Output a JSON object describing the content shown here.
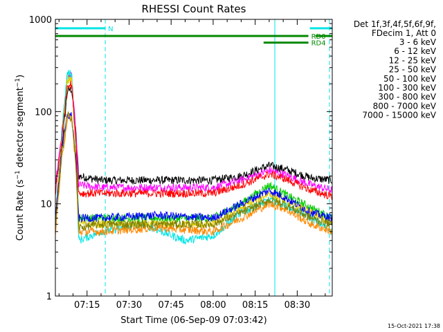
{
  "chart_data": {
    "type": "line",
    "title": "RHESSI Count Rates",
    "xlabel": "Start Time (06-Sep-09 07:03:42)",
    "ylabel": "Count Rate (s⁻¹ detector segment⁻¹)",
    "ylabel_main": "Count Rate (s",
    "ylabel_sup1": "−1",
    "ylabel_mid": " detector segment",
    "ylabel_sup2": "−1",
    "ylabel_end": ")",
    "yscale": "log",
    "ylim": [
      1,
      1000
    ],
    "xlim": [
      "07:03:42",
      "08:42:30"
    ],
    "x_ticks": [
      "07:15",
      "07:30",
      "07:45",
      "08:00",
      "08:15",
      "08:30"
    ],
    "y_ticks": [
      "1",
      "10",
      "100",
      "1000"
    ],
    "legend_header": [
      "Det 1f,3f,4f,5f,6f,9f,",
      "FDecim 1, Att 0"
    ],
    "legend": [
      {
        "label": "3 - 6 keV",
        "color": "#000000"
      },
      {
        "label": "6 - 12 keV",
        "color": "#ff00ff"
      },
      {
        "label": "12 - 25 keV",
        "color": "#00cc00"
      },
      {
        "label": "25 - 50 keV",
        "color": "#00e5e5"
      },
      {
        "label": "50 - 100 keV",
        "color": "#e5cc00"
      },
      {
        "label": "100 - 300 keV",
        "color": "#ff0000"
      },
      {
        "label": "300 - 800 keV",
        "color": "#0000ff"
      },
      {
        "label": "800 - 7000 keV",
        "color": "#ff8800"
      },
      {
        "label": "7000 - 15000 keV",
        "color": "#808000"
      }
    ],
    "series": [
      {
        "name": "3 - 6 keV",
        "color": "#000000",
        "points": [
          [
            "07:03:42",
            16
          ],
          [
            "07:06:00",
            40
          ],
          [
            "07:08:00",
            170
          ],
          [
            "07:09:30",
            175
          ],
          [
            "07:11:00",
            60
          ],
          [
            "07:12:00",
            20
          ],
          [
            "07:20:00",
            18
          ],
          [
            "07:40:00",
            18
          ],
          [
            "08:00:00",
            18
          ],
          [
            "08:10:00",
            20
          ],
          [
            "08:20:00",
            26
          ],
          [
            "08:25:00",
            24
          ],
          [
            "08:35:00",
            19
          ],
          [
            "08:42:30",
            18
          ]
        ]
      },
      {
        "name": "6 - 12 keV",
        "color": "#ff00ff",
        "points": [
          [
            "07:03:42",
            16
          ],
          [
            "07:06:00",
            60
          ],
          [
            "07:08:00",
            240
          ],
          [
            "07:09:30",
            240
          ],
          [
            "07:11:00",
            60
          ],
          [
            "07:12:00",
            16
          ],
          [
            "07:20:00",
            15
          ],
          [
            "07:40:00",
            15
          ],
          [
            "08:00:00",
            15
          ],
          [
            "08:10:00",
            18
          ],
          [
            "08:20:00",
            23
          ],
          [
            "08:25:00",
            21
          ],
          [
            "08:35:00",
            16
          ],
          [
            "08:42:30",
            14
          ]
        ]
      },
      {
        "name": "12 - 25 keV",
        "color": "#00cc00",
        "points": [
          [
            "07:03:42",
            6
          ],
          [
            "07:06:00",
            60
          ],
          [
            "07:08:00",
            250
          ],
          [
            "07:09:30",
            250
          ],
          [
            "07:11:00",
            40
          ],
          [
            "07:12:00",
            7
          ],
          [
            "07:20:00",
            7
          ],
          [
            "07:40:00",
            7
          ],
          [
            "08:00:00",
            7
          ],
          [
            "08:10:00",
            10
          ],
          [
            "08:20:00",
            16
          ],
          [
            "08:25:00",
            13
          ],
          [
            "08:35:00",
            9
          ],
          [
            "08:42:30",
            7
          ]
        ]
      },
      {
        "name": "25 - 50 keV",
        "color": "#00e5e5",
        "points": [
          [
            "07:03:42",
            5
          ],
          [
            "07:06:00",
            60
          ],
          [
            "07:08:00",
            260
          ],
          [
            "07:09:30",
            255
          ],
          [
            "07:11:00",
            40
          ],
          [
            "07:12:00",
            4
          ],
          [
            "07:20:00",
            5
          ],
          [
            "07:35:00",
            6
          ],
          [
            "07:50:00",
            4
          ],
          [
            "08:00:00",
            4.5
          ],
          [
            "08:10:00",
            8
          ],
          [
            "08:20:00",
            11
          ],
          [
            "08:25:00",
            10
          ],
          [
            "08:35:00",
            7
          ],
          [
            "08:42:30",
            5
          ]
        ]
      },
      {
        "name": "50 - 100 keV",
        "color": "#e5cc00",
        "points": [
          [
            "07:03:42",
            6
          ],
          [
            "07:06:00",
            50
          ],
          [
            "07:08:00",
            220
          ],
          [
            "07:09:30",
            215
          ],
          [
            "07:11:00",
            40
          ],
          [
            "07:12:00",
            6
          ],
          [
            "07:20:00",
            6
          ],
          [
            "07:40:00",
            6
          ],
          [
            "08:00:00",
            6
          ],
          [
            "08:10:00",
            9
          ],
          [
            "08:20:00",
            13
          ],
          [
            "08:25:00",
            11
          ],
          [
            "08:35:00",
            8
          ],
          [
            "08:42:30",
            6
          ]
        ]
      },
      {
        "name": "100 - 300 keV",
        "color": "#ff0000",
        "points": [
          [
            "07:03:42",
            13
          ],
          [
            "07:06:00",
            50
          ],
          [
            "07:08:00",
            200
          ],
          [
            "07:09:30",
            195
          ],
          [
            "07:11:00",
            50
          ],
          [
            "07:12:00",
            13
          ],
          [
            "07:20:00",
            13
          ],
          [
            "07:40:00",
            13
          ],
          [
            "08:00:00",
            13
          ],
          [
            "08:10:00",
            16
          ],
          [
            "08:20:00",
            21
          ],
          [
            "08:25:00",
            19
          ],
          [
            "08:35:00",
            14
          ],
          [
            "08:42:30",
            12
          ]
        ]
      },
      {
        "name": "300 - 800 keV",
        "color": "#0000ff",
        "points": [
          [
            "07:03:42",
            7
          ],
          [
            "07:06:00",
            40
          ],
          [
            "07:08:00",
            90
          ],
          [
            "07:09:30",
            90
          ],
          [
            "07:11:00",
            30
          ],
          [
            "07:12:00",
            7
          ],
          [
            "07:20:00",
            7
          ],
          [
            "07:40:00",
            7.5
          ],
          [
            "08:00:00",
            7
          ],
          [
            "08:10:00",
            10
          ],
          [
            "08:20:00",
            14
          ],
          [
            "08:25:00",
            12
          ],
          [
            "08:35:00",
            8
          ],
          [
            "08:42:30",
            7
          ]
        ]
      },
      {
        "name": "800 - 7000 keV",
        "color": "#ff8800",
        "points": [
          [
            "07:03:42",
            5
          ],
          [
            "07:06:00",
            30
          ],
          [
            "07:08:00",
            85
          ],
          [
            "07:09:30",
            85
          ],
          [
            "07:11:00",
            25
          ],
          [
            "07:12:00",
            5
          ],
          [
            "07:20:00",
            5
          ],
          [
            "07:40:00",
            5.5
          ],
          [
            "08:00:00",
            5
          ],
          [
            "08:10:00",
            7
          ],
          [
            "08:20:00",
            10
          ],
          [
            "08:25:00",
            9
          ],
          [
            "08:35:00",
            6
          ],
          [
            "08:42:30",
            5
          ]
        ]
      },
      {
        "name": "7000 - 15000 keV",
        "color": "#808000",
        "points": [
          [
            "07:03:42",
            5.5
          ],
          [
            "07:06:00",
            35
          ],
          [
            "07:08:00",
            90
          ],
          [
            "07:09:30",
            88
          ],
          [
            "07:11:00",
            28
          ],
          [
            "07:12:00",
            5.5
          ],
          [
            "07:20:00",
            6
          ],
          [
            "07:40:00",
            6
          ],
          [
            "08:00:00",
            6
          ],
          [
            "08:10:00",
            8
          ],
          [
            "08:20:00",
            11
          ],
          [
            "08:25:00",
            10
          ],
          [
            "08:35:00",
            7
          ],
          [
            "08:42:30",
            6
          ]
        ]
      }
    ],
    "markers": [
      {
        "label": "N",
        "color": "#00e5e5",
        "start": "07:03:42",
        "end": "07:21:30",
        "level": 800
      },
      {
        "label": "RD0",
        "color": "#008800",
        "start": "07:03:42",
        "end": "08:34:00",
        "level": 660
      },
      {
        "label": "RD4",
        "color": "#008800",
        "start": "08:18:00",
        "end": "08:34:00",
        "level": 560
      }
    ],
    "vlines": [
      {
        "time": "07:21:30",
        "style": "dashed",
        "color": "#00e5e5"
      },
      {
        "time": "08:22:00",
        "style": "solid",
        "color": "#00e5e5"
      },
      {
        "time": "08:41:30",
        "style": "dashed",
        "color": "#00e5e5"
      }
    ],
    "timestamp": "15-Oct-2021 17:38",
    "grid": false,
    "legend_position": "right"
  }
}
